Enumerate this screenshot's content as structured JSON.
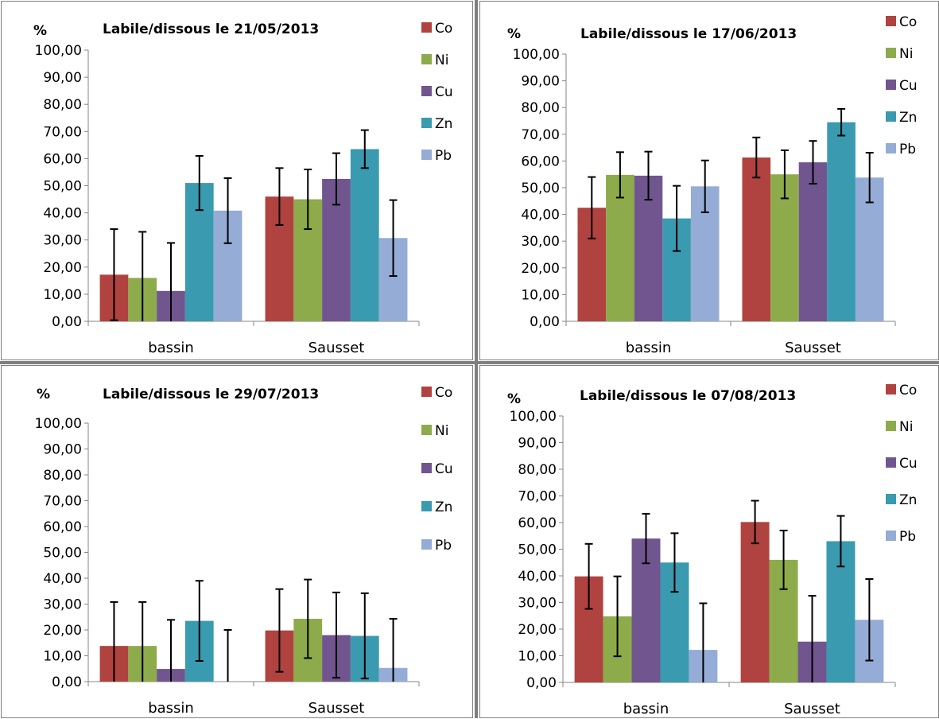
{
  "colors": {
    "Co": "#B0433F",
    "Ni": "#8DAB4A",
    "Cu": "#71558F",
    "Zn": "#3A9AB0",
    "Pb": "#94ACD6",
    "error_bar": "#000000",
    "axis": "#868686"
  },
  "chart_data": [
    {
      "type": "bar",
      "title": "Labile/dissous le 21/05/2013",
      "ylabel": "%",
      "ylim": [
        0,
        100
      ],
      "yticks": [
        "0,00",
        "10,00",
        "20,00",
        "30,00",
        "40,00",
        "50,00",
        "60,00",
        "70,00",
        "80,00",
        "90,00",
        "100,00"
      ],
      "grid": false,
      "legend_position": "right",
      "categories": [
        "bassin",
        "Sausset"
      ],
      "series": [
        {
          "name": "Co",
          "values": [
            17.2,
            46.0
          ],
          "errors": [
            16.8,
            10.5
          ]
        },
        {
          "name": "Ni",
          "values": [
            16.0,
            45.0
          ],
          "errors": [
            17.0,
            11.0
          ]
        },
        {
          "name": "Cu",
          "values": [
            11.2,
            52.5
          ],
          "errors": [
            17.7,
            9.5
          ]
        },
        {
          "name": "Zn",
          "values": [
            51.0,
            63.5
          ],
          "errors": [
            10.0,
            7.0
          ]
        },
        {
          "name": "Pb",
          "values": [
            40.8,
            30.7
          ],
          "errors": [
            12.0,
            14.0
          ]
        }
      ]
    },
    {
      "type": "bar",
      "title": "Labile/dissous le 17/06/2013",
      "ylabel": "%",
      "ylim": [
        0,
        100
      ],
      "yticks": [
        "0,00",
        "10,00",
        "20,00",
        "30,00",
        "40,00",
        "50,00",
        "60,00",
        "70,00",
        "80,00",
        "90,00",
        "100,00"
      ],
      "grid": false,
      "legend_position": "right",
      "categories": [
        "bassin",
        "Sausset"
      ],
      "series": [
        {
          "name": "Co",
          "values": [
            42.5,
            61.3
          ],
          "errors": [
            11.5,
            7.5
          ]
        },
        {
          "name": "Ni",
          "values": [
            54.8,
            55.0
          ],
          "errors": [
            8.5,
            9.0
          ]
        },
        {
          "name": "Cu",
          "values": [
            54.5,
            59.5
          ],
          "errors": [
            9.0,
            8.0
          ]
        },
        {
          "name": "Zn",
          "values": [
            38.5,
            74.5
          ],
          "errors": [
            12.2,
            5.0
          ]
        },
        {
          "name": "Pb",
          "values": [
            50.5,
            53.8
          ],
          "errors": [
            9.7,
            9.3
          ]
        }
      ]
    },
    {
      "type": "bar",
      "title": "Labile/dissous le 29/07/2013",
      "ylabel": "%",
      "ylim": [
        0,
        100
      ],
      "yticks": [
        "0,00",
        "10,00",
        "20,00",
        "30,00",
        "40,00",
        "50,00",
        "60,00",
        "70,00",
        "80,00",
        "90,00",
        "100,00"
      ],
      "grid": false,
      "legend_position": "right",
      "categories": [
        "bassin",
        "Sausset"
      ],
      "series": [
        {
          "name": "Co",
          "values": [
            13.8,
            19.8
          ],
          "errors": [
            17.0,
            16.0
          ]
        },
        {
          "name": "Ni",
          "values": [
            13.8,
            24.3
          ],
          "errors": [
            17.0,
            15.2
          ]
        },
        {
          "name": "Cu",
          "values": [
            4.9,
            18.0
          ],
          "errors": [
            19.0,
            16.5
          ]
        },
        {
          "name": "Zn",
          "values": [
            23.5,
            17.7
          ],
          "errors": [
            15.5,
            16.5
          ]
        },
        {
          "name": "Pb",
          "values": [
            0.2,
            5.3
          ],
          "errors": [
            19.8,
            19.0
          ]
        }
      ]
    },
    {
      "type": "bar",
      "title": "Labile/dissous le 07/08/2013",
      "ylabel": "%",
      "ylim": [
        0,
        100
      ],
      "yticks": [
        "0,00",
        "10,00",
        "20,00",
        "30,00",
        "40,00",
        "50,00",
        "60,00",
        "70,00",
        "80,00",
        "90,00",
        "100,00"
      ],
      "grid": false,
      "legend_position": "right",
      "categories": [
        "bassin",
        "Sausset"
      ],
      "series": [
        {
          "name": "Co",
          "values": [
            39.8,
            60.2
          ],
          "errors": [
            12.2,
            8.0
          ]
        },
        {
          "name": "Ni",
          "values": [
            24.8,
            46.0
          ],
          "errors": [
            15.0,
            11.0
          ]
        },
        {
          "name": "Cu",
          "values": [
            54.0,
            15.3
          ],
          "errors": [
            9.3,
            17.2
          ]
        },
        {
          "name": "Zn",
          "values": [
            45.0,
            53.0
          ],
          "errors": [
            11.0,
            9.5
          ]
        },
        {
          "name": "Pb",
          "values": [
            12.2,
            23.5
          ],
          "errors": [
            17.5,
            15.3
          ]
        }
      ]
    }
  ]
}
